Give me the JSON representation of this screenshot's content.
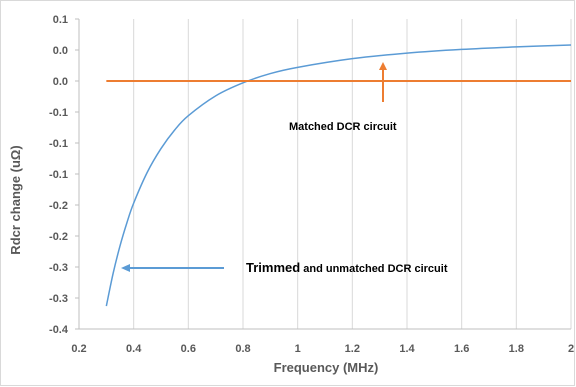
{
  "chart_data": {
    "type": "line",
    "xlabel": "Frequency (MHz)",
    "ylabel": "Rdcr change (uΩ)",
    "xlim": [
      0.2,
      2.0
    ],
    "ylim": [
      -0.4,
      0.1
    ],
    "grid": {
      "vertical": true,
      "horizontal": false
    },
    "x_ticks": [
      0.2,
      0.4,
      0.6,
      0.8,
      1.0,
      1.2,
      1.4,
      1.6,
      1.8,
      2.0
    ],
    "x_tick_labels": [
      "0.2",
      "0.4",
      "0.6",
      "0.8",
      "1",
      "1.2",
      "1.4",
      "1.6",
      "1.8",
      "2"
    ],
    "y_ticks": [
      0.1,
      0.05,
      0.0,
      -0.05,
      -0.1,
      -0.15,
      -0.2,
      -0.25,
      -0.3,
      -0.35,
      -0.4
    ],
    "y_tick_labels": [
      "0.1",
      "0.0",
      "0.0",
      "-0.1",
      "-0.1",
      "-0.1",
      "-0.2",
      "-0.2",
      "-0.3",
      "-0.3",
      "-0.4"
    ],
    "series": [
      {
        "color": "#5b9bd5",
        "x": [
          0.3,
          0.325,
          0.35,
          0.375,
          0.4,
          0.45,
          0.5,
          0.55,
          0.6,
          0.7,
          0.8,
          0.9,
          1.0,
          1.2,
          1.4,
          1.6,
          1.8,
          2.0
        ],
        "y": [
          -0.363,
          -0.31,
          -0.266,
          -0.229,
          -0.197,
          -0.147,
          -0.109,
          -0.079,
          -0.056,
          -0.024,
          -0.003,
          0.012,
          0.022,
          0.036,
          0.045,
          0.051,
          0.055,
          0.058
        ]
      },
      {
        "color": "#ed7d31",
        "x": [
          0.3,
          2.0
        ],
        "y": [
          0.0,
          0.0
        ]
      }
    ],
    "annotations": [
      {
        "text": "Matched DCR circuit",
        "arrow_color": "#ed7d31"
      },
      {
        "text_bold": "Trimmed",
        "text_rest": " and unmatched DCR circuit",
        "arrow_color": "#5b9bd5"
      }
    ]
  }
}
